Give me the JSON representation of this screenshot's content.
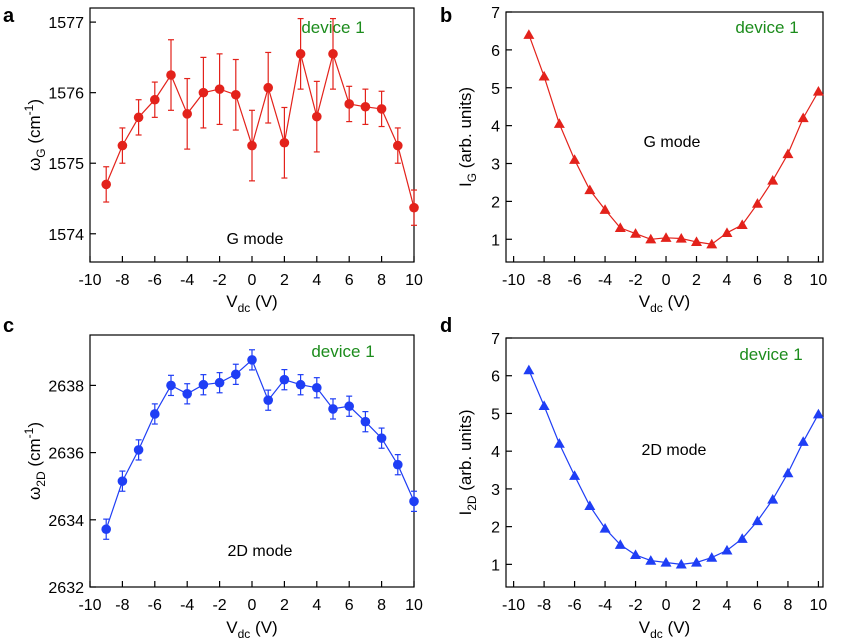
{
  "colors": {
    "red": "#e3221b",
    "blue": "#1f3ef5",
    "green": "#1c8c1c",
    "axis": "#000000"
  },
  "chart_data": [
    {
      "id": "a",
      "panel_label": "a",
      "type": "scatter",
      "connect": true,
      "marker": "circle",
      "color": "#e3221b",
      "xlabel": {
        "main": "V",
        "sub": "dc",
        "tail": " (V)"
      },
      "ylabel": {
        "main": "ω",
        "sub": "G",
        "tail": " (cm",
        "sup": "-1",
        "close": ")"
      },
      "xlim": [
        -10,
        10
      ],
      "ylim": [
        1573.6,
        1577.2
      ],
      "xticks": [
        -10,
        -8,
        -6,
        -4,
        -2,
        0,
        2,
        4,
        6,
        8,
        10
      ],
      "xtick_labels": [
        "-10",
        "-8",
        "-6",
        "-4",
        "-2",
        "0",
        "2",
        "4",
        "6",
        "8",
        "10"
      ],
      "yticks": [
        1574,
        1575,
        1576,
        1577
      ],
      "ytick_labels": [
        "1574",
        "1575",
        "1576",
        "1577"
      ],
      "device_text": "device 1",
      "mode_text": "G mode",
      "x": [
        -9,
        -8,
        -7,
        -6,
        -5,
        -4,
        -3,
        -2,
        -1,
        0,
        1,
        2,
        3,
        4,
        5,
        6,
        7,
        8,
        9,
        10
      ],
      "y": [
        1574.7,
        1575.25,
        1575.65,
        1575.9,
        1576.25,
        1575.7,
        1576.0,
        1576.05,
        1575.97,
        1575.25,
        1576.07,
        1575.29,
        1576.55,
        1575.66,
        1576.55,
        1575.84,
        1575.8,
        1575.77,
        1575.25,
        1574.37
      ],
      "yerr": [
        0.25,
        0.25,
        0.25,
        0.25,
        0.5,
        0.5,
        0.5,
        0.5,
        0.5,
        0.5,
        0.5,
        0.5,
        0.5,
        0.5,
        0.5,
        0.25,
        0.25,
        0.25,
        0.25,
        0.25
      ]
    },
    {
      "id": "b",
      "panel_label": "b",
      "type": "line",
      "connect": true,
      "marker": "triangle",
      "color": "#e3221b",
      "xlabel": {
        "main": "V",
        "sub": "dc",
        "tail": " (V)"
      },
      "ylabel": {
        "main": "I",
        "sub": "G",
        "tail": " (arb. units)"
      },
      "xlim": [
        -10.5,
        10.3
      ],
      "ylim": [
        0.4,
        7
      ],
      "xticks": [
        -10,
        -8,
        -6,
        -4,
        -2,
        0,
        2,
        4,
        6,
        8,
        10
      ],
      "xtick_labels": [
        "-10",
        "-8",
        "-6",
        "-4",
        "-2",
        "0",
        "2",
        "4",
        "6",
        "8",
        "10"
      ],
      "yticks": [
        1,
        2,
        3,
        4,
        5,
        6,
        7
      ],
      "ytick_labels": [
        "1",
        "2",
        "3",
        "4",
        "5",
        "6",
        "7"
      ],
      "device_text": "device 1",
      "mode_text": "G mode",
      "x": [
        -9,
        -8,
        -7,
        -6,
        -5,
        -4,
        -3,
        -2,
        -1,
        0,
        1,
        2,
        3,
        4,
        5,
        6,
        7,
        8,
        9,
        10
      ],
      "y": [
        6.4,
        5.3,
        4.05,
        3.1,
        2.3,
        1.78,
        1.3,
        1.15,
        1.0,
        1.04,
        1.02,
        0.93,
        0.87,
        1.17,
        1.38,
        1.94,
        2.55,
        3.25,
        4.2,
        4.9
      ]
    },
    {
      "id": "c",
      "panel_label": "c",
      "type": "scatter",
      "connect": true,
      "marker": "circle",
      "color": "#1f3ef5",
      "xlabel": {
        "main": "V",
        "sub": "dc",
        "tail": " (V)"
      },
      "ylabel": {
        "main": "ω",
        "sub": "2D",
        "tail": " (cm",
        "sup": "-1",
        "close": ")"
      },
      "xlim": [
        -10,
        10
      ],
      "ylim": [
        2632,
        2639.5
      ],
      "xticks": [
        -10,
        -8,
        -6,
        -4,
        -2,
        0,
        2,
        4,
        6,
        8,
        10
      ],
      "xtick_labels": [
        "-10",
        "-8",
        "-6",
        "-4",
        "-2",
        "0",
        "2",
        "4",
        "6",
        "8",
        "10"
      ],
      "yticks": [
        2632,
        2634,
        2636,
        2638
      ],
      "ytick_labels": [
        "2632",
        "2634",
        "2636",
        "2638"
      ],
      "device_text": "device 1",
      "mode_text": "2D mode",
      "x": [
        -9,
        -8,
        -7,
        -6,
        -5,
        -4,
        -3,
        -2,
        -1,
        0,
        1,
        2,
        3,
        4,
        5,
        6,
        7,
        8,
        9,
        10
      ],
      "y": [
        2633.72,
        2635.15,
        2636.08,
        2637.15,
        2638.0,
        2637.75,
        2638.02,
        2638.08,
        2638.33,
        2638.76,
        2637.56,
        2638.17,
        2638.02,
        2637.93,
        2637.3,
        2637.38,
        2636.92,
        2636.43,
        2635.64,
        2634.55
      ],
      "yerr": [
        0.3,
        0.3,
        0.3,
        0.3,
        0.3,
        0.3,
        0.3,
        0.3,
        0.3,
        0.3,
        0.3,
        0.3,
        0.3,
        0.3,
        0.3,
        0.3,
        0.3,
        0.3,
        0.3,
        0.3
      ]
    },
    {
      "id": "d",
      "panel_label": "d",
      "type": "line",
      "connect": true,
      "marker": "triangle",
      "color": "#1f3ef5",
      "xlabel": {
        "main": "V",
        "sub": "dc",
        "tail": " (V)"
      },
      "ylabel": {
        "main": "I",
        "sub": "2D",
        "tail": " (arb. units)"
      },
      "xlim": [
        -10.5,
        10.3
      ],
      "ylim": [
        0.4,
        7
      ],
      "xticks": [
        -10,
        -8,
        -6,
        -4,
        -2,
        0,
        2,
        4,
        6,
        8,
        10
      ],
      "xtick_labels": [
        "-10",
        "-8",
        "-6",
        "-4",
        "-2",
        "0",
        "2",
        "4",
        "6",
        "8",
        "10"
      ],
      "yticks": [
        1,
        2,
        3,
        4,
        5,
        6,
        7
      ],
      "ytick_labels": [
        "1",
        "2",
        "3",
        "4",
        "5",
        "6",
        "7"
      ],
      "device_text": "device 1",
      "mode_text": "2D mode",
      "x": [
        -9,
        -8,
        -7,
        -6,
        -5,
        -4,
        -3,
        -2,
        -1,
        0,
        1,
        2,
        3,
        4,
        5,
        6,
        7,
        8,
        9,
        10
      ],
      "y": [
        6.15,
        5.2,
        4.2,
        3.35,
        2.55,
        1.95,
        1.52,
        1.25,
        1.1,
        1.05,
        1.0,
        1.05,
        1.18,
        1.37,
        1.68,
        2.15,
        2.72,
        3.42,
        4.25,
        4.98
      ]
    }
  ]
}
